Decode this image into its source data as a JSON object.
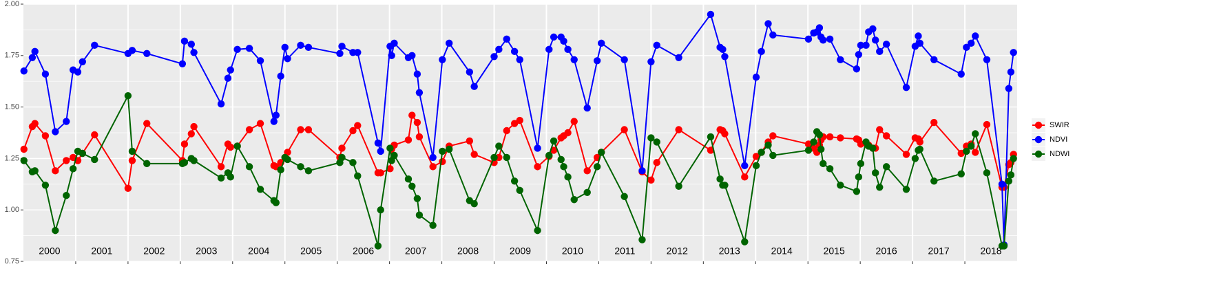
{
  "chart_data": {
    "type": "line",
    "x": [
      2000.01,
      2000.17,
      2000.22,
      2000.42,
      2000.61,
      2000.82,
      2000.95,
      2001.04,
      2001.13,
      2001.36,
      2002.0,
      2002.08,
      2002.36,
      2003.04,
      2003.08,
      2003.21,
      2003.26,
      2003.78,
      2003.91,
      2003.96,
      2004.09,
      2004.32,
      2004.53,
      2004.79,
      2004.83,
      2004.92,
      2005.0,
      2005.05,
      2005.3,
      2005.45,
      2006.05,
      2006.09,
      2006.3,
      2006.39,
      2006.78,
      2006.83,
      2007.01,
      2007.04,
      2007.09,
      2007.36,
      2007.43,
      2007.53,
      2007.57,
      2007.83,
      2008.01,
      2008.14,
      2008.53,
      2008.62,
      2009.0,
      2009.09,
      2009.24,
      2009.39,
      2009.49,
      2009.83,
      2010.05,
      2010.14,
      2010.28,
      2010.33,
      2010.41,
      2010.53,
      2010.78,
      2010.97,
      2011.05,
      2011.49,
      2011.83,
      2012.0,
      2012.11,
      2012.53,
      2013.14,
      2013.32,
      2013.37,
      2013.41,
      2013.79,
      2014.01,
      2014.11,
      2014.24,
      2014.33,
      2015.01,
      2015.11,
      2015.17,
      2015.22,
      2015.25,
      2015.29,
      2015.42,
      2015.62,
      2015.93,
      2015.97,
      2016.01,
      2016.11,
      2016.16,
      2016.24,
      2016.29,
      2016.37,
      2016.5,
      2016.88,
      2017.05,
      2017.11,
      2017.14,
      2017.41,
      2017.93,
      2018.03,
      2018.12,
      2018.2,
      2018.42,
      2018.71,
      2018.75,
      2018.84,
      2018.88,
      2018.93
    ],
    "xlim": [
      2000,
      2019
    ],
    "xgrid": [
      2001,
      2002,
      2003,
      2004,
      2005,
      2006,
      2007,
      2008,
      2009,
      2010,
      2011,
      2012,
      2013,
      2014,
      2015,
      2016,
      2017,
      2018
    ],
    "year_labels": [
      "2000",
      "2001",
      "2002",
      "2003",
      "2004",
      "2005",
      "2006",
      "2007",
      "2008",
      "2009",
      "2010",
      "2011",
      "2012",
      "2013",
      "2014",
      "2015",
      "2016",
      "2017",
      "2018"
    ],
    "ylim": [
      0.75,
      2.0
    ],
    "yticks": [
      0.75,
      {
        "value": 1,
        "label": "1.00"
      },
      1.25,
      {
        "value": 1.5,
        "label": "1.50"
      },
      1.75,
      {
        "value": 2,
        "label": "2.00"
      }
    ],
    "yminor": [
      0.875,
      1.125,
      1.375,
      1.625,
      1.875
    ],
    "grid": true,
    "legend": "right",
    "series": [
      {
        "name": "SWIR",
        "color": "#ff0000",
        "values": [
          1.295,
          1.405,
          1.42,
          1.36,
          1.19,
          1.24,
          1.255,
          1.24,
          1.275,
          1.365,
          1.105,
          1.24,
          1.42,
          1.24,
          1.32,
          1.37,
          1.405,
          1.21,
          1.32,
          1.305,
          1.31,
          1.39,
          1.42,
          1.215,
          1.21,
          1.23,
          1.255,
          1.28,
          1.39,
          1.39,
          1.255,
          1.3,
          1.385,
          1.41,
          1.18,
          1.18,
          1.2,
          1.295,
          1.315,
          1.34,
          1.46,
          1.425,
          1.355,
          1.21,
          1.235,
          1.31,
          1.335,
          1.27,
          1.23,
          1.255,
          1.385,
          1.42,
          1.435,
          1.21,
          1.26,
          1.29,
          1.35,
          1.36,
          1.375,
          1.43,
          1.19,
          1.255,
          1.28,
          1.39,
          1.185,
          1.145,
          1.23,
          1.39,
          1.29,
          1.39,
          1.385,
          1.37,
          1.16,
          1.26,
          1.28,
          1.33,
          1.36,
          1.32,
          1.3,
          1.28,
          1.315,
          1.34,
          1.355,
          1.355,
          1.35,
          1.345,
          1.34,
          1.32,
          1.325,
          1.315,
          1.3,
          1.3,
          1.39,
          1.36,
          1.27,
          1.35,
          1.345,
          1.33,
          1.425,
          1.275,
          1.31,
          1.32,
          1.28,
          1.415,
          1.11,
          1.11,
          1.22,
          1.23,
          1.27
        ]
      },
      {
        "name": "NDVI",
        "color": "#0000ff",
        "values": [
          1.675,
          1.74,
          1.77,
          1.66,
          1.38,
          1.43,
          1.68,
          1.67,
          1.72,
          1.8,
          1.76,
          1.775,
          1.76,
          1.71,
          1.82,
          1.805,
          1.765,
          1.515,
          1.64,
          1.68,
          1.78,
          1.785,
          1.725,
          1.43,
          1.46,
          1.65,
          1.79,
          1.735,
          1.8,
          1.79,
          1.76,
          1.795,
          1.765,
          1.765,
          1.325,
          1.285,
          1.795,
          1.75,
          1.81,
          1.74,
          1.75,
          1.66,
          1.57,
          1.255,
          1.73,
          1.81,
          1.67,
          1.6,
          1.745,
          1.78,
          1.83,
          1.77,
          1.73,
          1.3,
          1.78,
          1.84,
          1.84,
          1.82,
          1.78,
          1.73,
          1.495,
          1.725,
          1.81,
          1.73,
          1.19,
          1.72,
          1.8,
          1.74,
          1.95,
          1.79,
          1.78,
          1.745,
          1.215,
          1.645,
          1.77,
          1.905,
          1.85,
          1.83,
          1.86,
          1.865,
          1.885,
          1.84,
          1.825,
          1.83,
          1.73,
          1.685,
          1.755,
          1.8,
          1.8,
          1.865,
          1.88,
          1.825,
          1.77,
          1.805,
          1.595,
          1.795,
          1.845,
          1.81,
          1.73,
          1.66,
          1.79,
          1.81,
          1.845,
          1.73,
          1.125,
          0.83,
          1.59,
          1.67,
          1.765
        ]
      },
      {
        "name": "NDWI",
        "color": "#006400",
        "values": [
          1.24,
          1.185,
          1.19,
          1.12,
          0.9,
          1.07,
          1.2,
          1.285,
          1.275,
          1.245,
          1.555,
          1.285,
          1.225,
          1.225,
          1.23,
          1.25,
          1.24,
          1.155,
          1.18,
          1.16,
          1.31,
          1.21,
          1.1,
          1.045,
          1.035,
          1.195,
          1.255,
          1.245,
          1.21,
          1.19,
          1.23,
          1.255,
          1.23,
          1.165,
          0.825,
          1.0,
          1.3,
          1.24,
          1.265,
          1.15,
          1.115,
          1.055,
          0.975,
          0.925,
          1.285,
          1.295,
          1.045,
          1.03,
          1.255,
          1.31,
          1.255,
          1.14,
          1.095,
          0.9,
          1.265,
          1.335,
          1.245,
          1.21,
          1.16,
          1.05,
          1.085,
          1.21,
          1.28,
          1.065,
          0.855,
          1.35,
          1.33,
          1.115,
          1.355,
          1.15,
          1.12,
          1.12,
          0.845,
          1.215,
          1.28,
          1.315,
          1.265,
          1.29,
          1.33,
          1.38,
          1.365,
          1.295,
          1.225,
          1.2,
          1.12,
          1.09,
          1.16,
          1.225,
          1.33,
          1.31,
          1.3,
          1.18,
          1.11,
          1.21,
          1.1,
          1.25,
          1.29,
          1.295,
          1.14,
          1.175,
          1.285,
          1.31,
          1.37,
          1.18,
          0.825,
          0.825,
          1.14,
          1.17,
          1.25
        ]
      }
    ]
  }
}
